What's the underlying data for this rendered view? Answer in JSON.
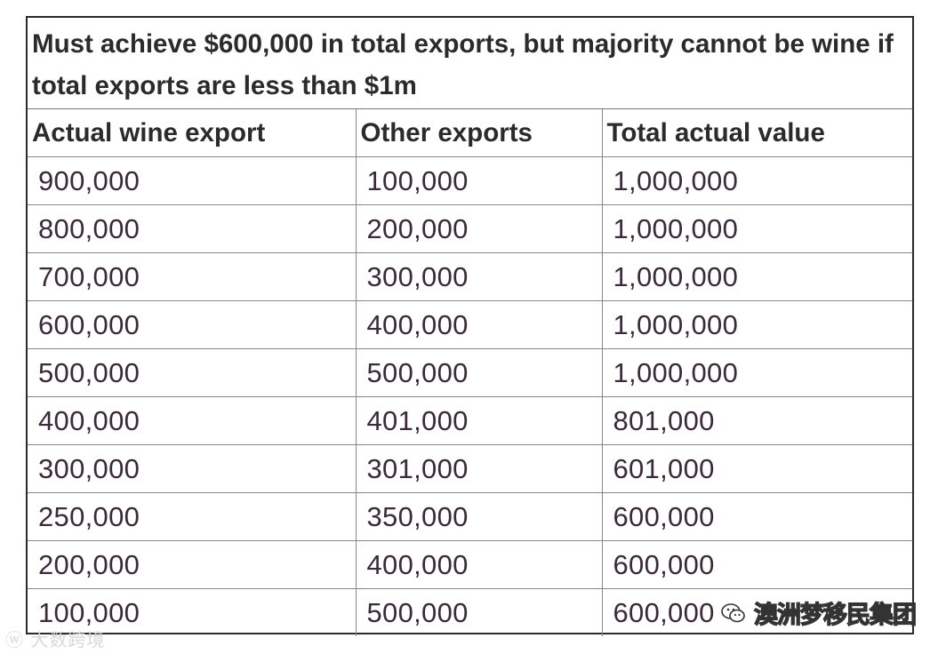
{
  "table": {
    "title": "Must achieve $600,000 in total exports, but majority cannot be wine if total exports are less than $1m",
    "headers": [
      "Actual wine export",
      "Other exports",
      "Total actual value"
    ],
    "rows": [
      [
        "900,000",
        "100,000",
        "1,000,000"
      ],
      [
        "800,000",
        "200,000",
        "1,000,000"
      ],
      [
        "700,000",
        "300,000",
        "1,000,000"
      ],
      [
        "600,000",
        "400,000",
        "1,000,000"
      ],
      [
        "500,000",
        "500,000",
        "1,000,000"
      ],
      [
        "400,000",
        "401,000",
        "801,000"
      ],
      [
        "300,000",
        "301,000",
        "601,000"
      ],
      [
        "250,000",
        "350,000",
        "600,000"
      ],
      [
        "200,000",
        "400,000",
        "600,000"
      ],
      [
        "100,000",
        "500,000",
        "600,000"
      ]
    ]
  },
  "watermarks": {
    "left": "大数跨境",
    "right": "澳洲梦移民集团",
    "left_icon": "weibo-icon",
    "right_icon": "wechat-icon"
  }
}
